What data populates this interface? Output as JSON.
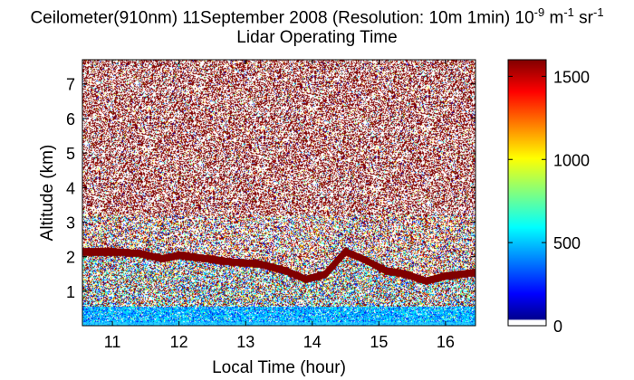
{
  "chart_data": {
    "type": "heatmap",
    "title_main": "Ceilometer(910nm) 11September 2008 (Resolution: 10m 1min) 10",
    "title_superscript_1": "-9",
    "title_unit_m": " m",
    "title_superscript_2": "-1",
    "title_unit_sr": " sr",
    "title_superscript_3": "-1",
    "subtitle": "Lidar Operating Time",
    "xlabel": "Local Time (hour)",
    "ylabel": "Altitude (km)",
    "xlim": [
      10.55,
      16.45
    ],
    "ylim": [
      0,
      7.7
    ],
    "x_ticks": [
      11,
      12,
      13,
      14,
      15,
      16
    ],
    "y_ticks": [
      1,
      2,
      3,
      4,
      5,
      6,
      7
    ],
    "colorbar": {
      "min": 0,
      "max": 1600,
      "ticks": [
        0,
        500,
        1000,
        1500
      ],
      "colormap": "jet"
    },
    "cloud_layer_km": [
      {
        "x": 10.55,
        "y": 2.15
      },
      {
        "x": 11.0,
        "y": 2.15
      },
      {
        "x": 11.4,
        "y": 2.1
      },
      {
        "x": 11.75,
        "y": 1.95
      },
      {
        "x": 12.0,
        "y": 2.05
      },
      {
        "x": 12.4,
        "y": 1.95
      },
      {
        "x": 12.8,
        "y": 1.85
      },
      {
        "x": 13.2,
        "y": 1.8
      },
      {
        "x": 13.6,
        "y": 1.6
      },
      {
        "x": 13.9,
        "y": 1.35
      },
      {
        "x": 14.2,
        "y": 1.5
      },
      {
        "x": 14.5,
        "y": 2.15
      },
      {
        "x": 14.8,
        "y": 1.9
      },
      {
        "x": 15.1,
        "y": 1.6
      },
      {
        "x": 15.4,
        "y": 1.5
      },
      {
        "x": 15.7,
        "y": 1.3
      },
      {
        "x": 16.0,
        "y": 1.45
      },
      {
        "x": 16.45,
        "y": 1.55
      }
    ],
    "colors": {
      "dark_red": "#800000",
      "cyan": "#00c8ff",
      "blue": "#0030ff"
    }
  }
}
